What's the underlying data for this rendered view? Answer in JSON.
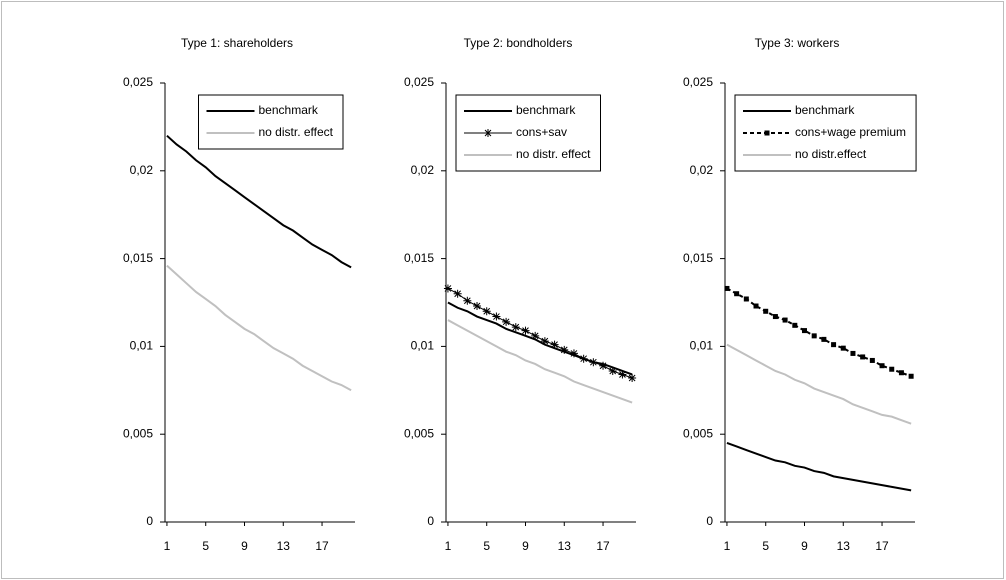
{
  "chart_data": [
    {
      "type": "line",
      "title": "Type 1: shareholders",
      "x": [
        1,
        2,
        3,
        4,
        5,
        6,
        7,
        8,
        9,
        10,
        11,
        12,
        13,
        14,
        15,
        16,
        17,
        18,
        19,
        20
      ],
      "xlim": [
        0.8,
        20.4
      ],
      "xticks": [
        1,
        5,
        9,
        13,
        17
      ],
      "ylim": [
        0,
        0.025
      ],
      "yticks": [
        0,
        {
          "value": 0.005,
          "label": "0,005"
        },
        {
          "value": 0.01,
          "label": "0,01"
        },
        {
          "value": 0.015,
          "label": "0,015"
        },
        {
          "value": 0.02,
          "label": "0,02"
        },
        {
          "value": 0.025,
          "label": "0,025"
        }
      ],
      "legend": "upper right",
      "series": [
        {
          "name": "benchmark",
          "color": "#000000",
          "line_style": "solid",
          "values": [
            0.022,
            0.0215,
            0.0211,
            0.0206,
            0.0202,
            0.0197,
            0.0193,
            0.0189,
            0.0185,
            0.0181,
            0.0177,
            0.0173,
            0.0169,
            0.0166,
            0.0162,
            0.0158,
            0.0155,
            0.0152,
            0.0148,
            0.0145
          ]
        },
        {
          "name": "no distr. effect",
          "color": "#c0c0c0",
          "line_style": "solid",
          "values": [
            0.0146,
            0.0141,
            0.0136,
            0.0131,
            0.0127,
            0.0123,
            0.0118,
            0.0114,
            0.011,
            0.0107,
            0.0103,
            0.0099,
            0.0096,
            0.0093,
            0.0089,
            0.0086,
            0.0083,
            0.008,
            0.0078,
            0.0075
          ]
        }
      ]
    },
    {
      "type": "line",
      "title": "Type 2: bondholders",
      "x": [
        1,
        2,
        3,
        4,
        5,
        6,
        7,
        8,
        9,
        10,
        11,
        12,
        13,
        14,
        15,
        16,
        17,
        18,
        19,
        20
      ],
      "xlim": [
        0.8,
        20.4
      ],
      "xticks": [
        1,
        5,
        9,
        13,
        17
      ],
      "ylim": [
        0,
        0.025
      ],
      "yticks": [
        0,
        {
          "value": 0.005,
          "label": "0,005"
        },
        {
          "value": 0.01,
          "label": "0,01"
        },
        {
          "value": 0.015,
          "label": "0,015"
        },
        {
          "value": 0.02,
          "label": "0,02"
        },
        {
          "value": 0.025,
          "label": "0,025"
        }
      ],
      "legend": "upper left",
      "series": [
        {
          "name": "benchmark",
          "color": "#000000",
          "line_style": "solid",
          "values": [
            0.0125,
            0.0122,
            0.012,
            0.0117,
            0.0115,
            0.0113,
            0.011,
            0.0108,
            0.0106,
            0.0104,
            0.0101,
            0.0099,
            0.0097,
            0.0095,
            0.0093,
            0.0091,
            0.009,
            0.0088,
            0.0086,
            0.0084
          ]
        },
        {
          "name": "cons+sav",
          "color": "#000000",
          "line_style": "solid",
          "marker": "star",
          "values": [
            0.0133,
            0.013,
            0.0126,
            0.0123,
            0.012,
            0.0117,
            0.0114,
            0.0111,
            0.0109,
            0.0106,
            0.0103,
            0.0101,
            0.0098,
            0.0096,
            0.0093,
            0.0091,
            0.0089,
            0.0086,
            0.0084,
            0.0082
          ]
        },
        {
          "name": "no distr. effect",
          "color": "#c0c0c0",
          "line_style": "solid",
          "values": [
            0.0115,
            0.0112,
            0.0109,
            0.0106,
            0.0103,
            0.01,
            0.0097,
            0.0095,
            0.0092,
            0.009,
            0.0087,
            0.0085,
            0.0083,
            0.008,
            0.0078,
            0.0076,
            0.0074,
            0.0072,
            0.007,
            0.0068
          ]
        }
      ]
    },
    {
      "type": "line",
      "title": "Type 3: workers",
      "x": [
        1,
        2,
        3,
        4,
        5,
        6,
        7,
        8,
        9,
        10,
        11,
        12,
        13,
        14,
        15,
        16,
        17,
        18,
        19,
        20
      ],
      "xlim": [
        0.8,
        20.4
      ],
      "xticks": [
        1,
        5,
        9,
        13,
        17
      ],
      "ylim": [
        0,
        0.025
      ],
      "yticks": [
        0,
        {
          "value": 0.005,
          "label": "0,005"
        },
        {
          "value": 0.01,
          "label": "0,01"
        },
        {
          "value": 0.015,
          "label": "0,015"
        },
        {
          "value": 0.02,
          "label": "0,02"
        },
        {
          "value": 0.025,
          "label": "0,025"
        }
      ],
      "legend": "upper left",
      "series": [
        {
          "name": "benchmark",
          "color": "#000000",
          "line_style": "solid",
          "values": [
            0.0045,
            0.0043,
            0.0041,
            0.0039,
            0.0037,
            0.0035,
            0.0034,
            0.0032,
            0.0031,
            0.0029,
            0.0028,
            0.0026,
            0.0025,
            0.0024,
            0.0023,
            0.0022,
            0.0021,
            0.002,
            0.0019,
            0.0018
          ]
        },
        {
          "name": "cons+wage premium",
          "color": "#000000",
          "line_style": "dashed",
          "marker": "square",
          "values": [
            0.0133,
            0.013,
            0.0127,
            0.0123,
            0.012,
            0.0117,
            0.0115,
            0.0112,
            0.0109,
            0.0106,
            0.0104,
            0.0101,
            0.0099,
            0.0096,
            0.0094,
            0.0092,
            0.0089,
            0.0087,
            0.0085,
            0.0083
          ]
        },
        {
          "name": "no distr.effect",
          "color": "#c0c0c0",
          "line_style": "solid",
          "values": [
            0.0101,
            0.0098,
            0.0095,
            0.0092,
            0.0089,
            0.0086,
            0.0084,
            0.0081,
            0.0079,
            0.0076,
            0.0074,
            0.0072,
            0.007,
            0.0067,
            0.0065,
            0.0063,
            0.0061,
            0.006,
            0.0058,
            0.0056
          ]
        }
      ]
    }
  ]
}
